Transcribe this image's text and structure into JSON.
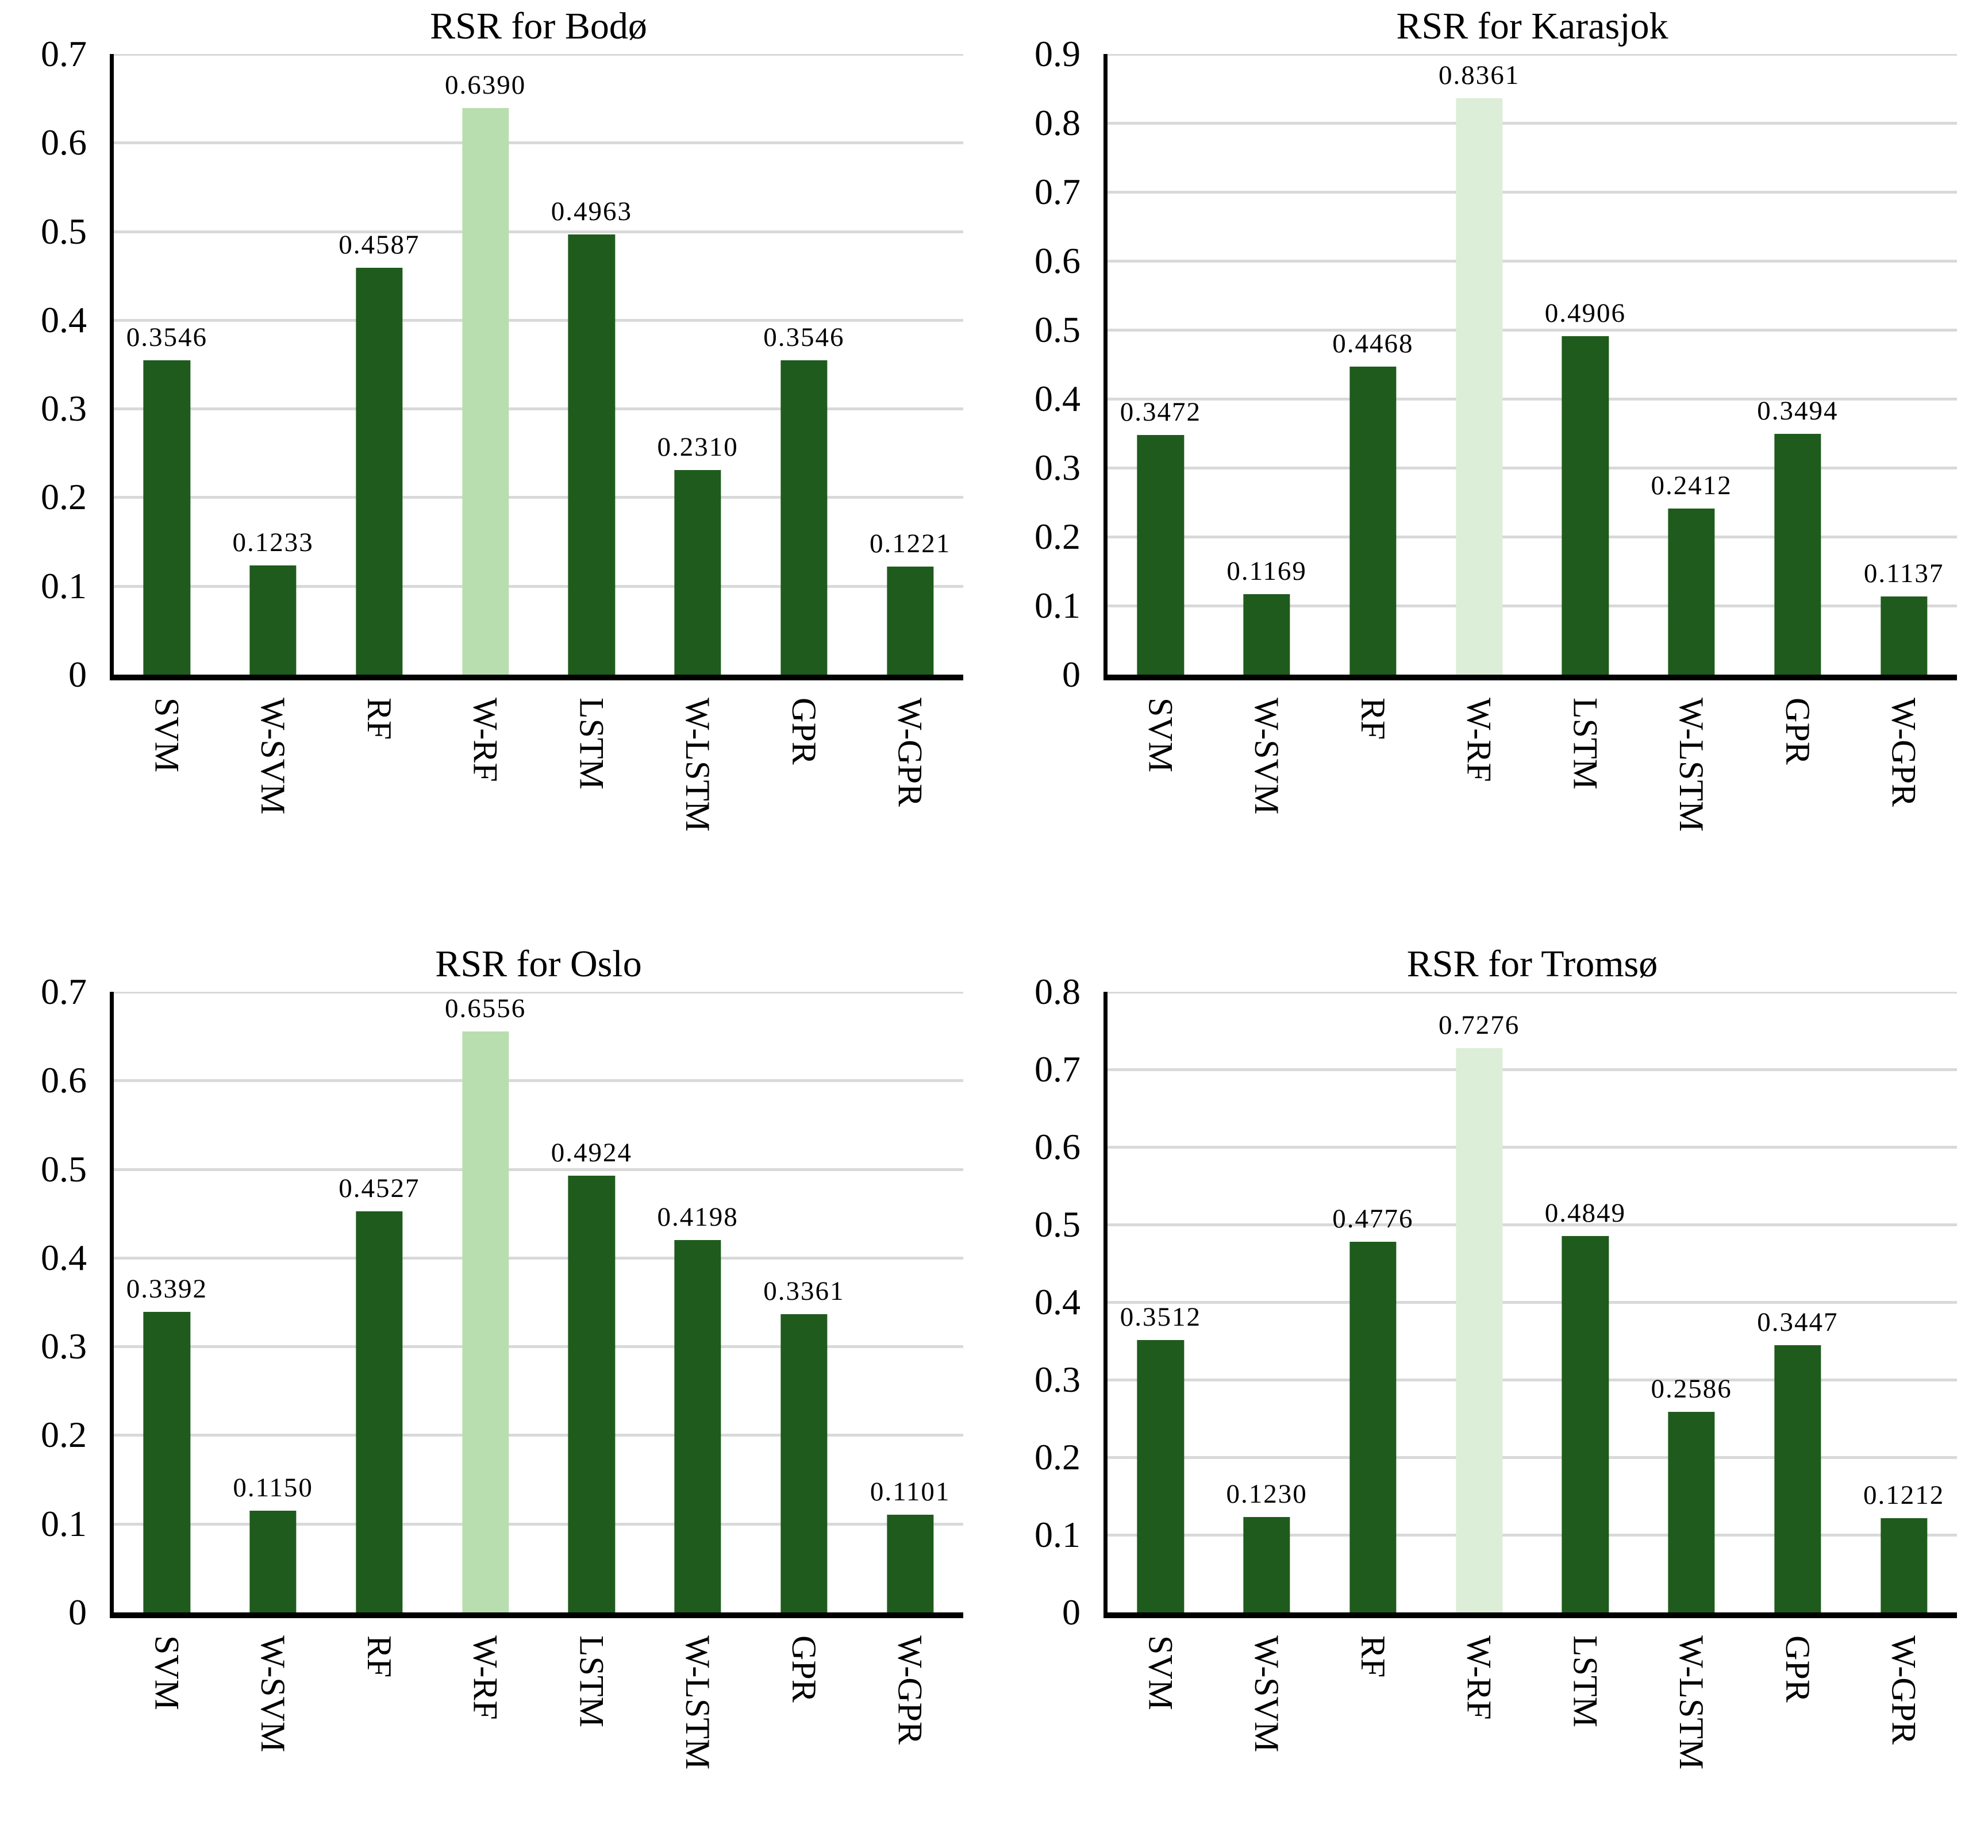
{
  "figure": {
    "background": "#ffffff"
  },
  "colors": {
    "bar_dark_green": "#1f5b1d",
    "highlight_light_green": "#b8deb0",
    "highlight_pale_green": "#dceed8",
    "gridline_gray": "#d9d9d9",
    "axis_black": "#000000",
    "text_black": "#000000"
  },
  "chart_data": [
    {
      "type": "bar",
      "title": "RSR for Bodø",
      "categories": [
        "SVM",
        "W-SVM",
        "RF",
        "W-RF",
        "LSTM",
        "W-LSTM",
        "GPR",
        "W-GPR"
      ],
      "values": [
        0.3546,
        0.1233,
        0.4587,
        0.639,
        0.4963,
        0.231,
        0.3546,
        0.1221
      ],
      "value_labels": [
        "0.3546",
        "0.1233",
        "0.4587",
        "0.6390",
        "0.4963",
        "0.2310",
        "0.3546",
        "0.1221"
      ],
      "highlight_index": 3,
      "bar_color": "#1f5b1d",
      "highlight_color": "#b8deb0",
      "ylim": [
        0,
        0.7
      ],
      "ytick_interval": 0.1,
      "ytick_labels": [
        "0",
        "0.1",
        "0.2",
        "0.3",
        "0.4",
        "0.5",
        "0.6",
        "0.7"
      ],
      "grid": true,
      "legend": "none",
      "xlabel": "",
      "ylabel": ""
    },
    {
      "type": "bar",
      "title": "RSR for Karasjok",
      "categories": [
        "SVM",
        "W-SVM",
        "RF",
        "W-RF",
        "LSTM",
        "W-LSTM",
        "GPR",
        "W-GPR"
      ],
      "values": [
        0.3472,
        0.1169,
        0.4468,
        0.8361,
        0.4906,
        0.2412,
        0.3494,
        0.1137
      ],
      "value_labels": [
        "0.3472",
        "0.1169",
        "0.4468",
        "0.8361",
        "0.4906",
        "0.2412",
        "0.3494",
        "0.1137"
      ],
      "highlight_index": 3,
      "bar_color": "#1f5b1d",
      "highlight_color": "#dceed8",
      "ylim": [
        0,
        0.9
      ],
      "ytick_interval": 0.1,
      "ytick_labels": [
        "0",
        "0.1",
        "0.2",
        "0.3",
        "0.4",
        "0.5",
        "0.6",
        "0.7",
        "0.8",
        "0.9"
      ],
      "grid": true,
      "legend": "none",
      "xlabel": "",
      "ylabel": ""
    },
    {
      "type": "bar",
      "title": "RSR for Oslo",
      "categories": [
        "SVM",
        "W-SVM",
        "RF",
        "W-RF",
        "LSTM",
        "W-LSTM",
        "GPR",
        "W-GPR"
      ],
      "values": [
        0.3392,
        0.115,
        0.4527,
        0.6556,
        0.4924,
        0.4198,
        0.3361,
        0.1101
      ],
      "value_labels": [
        "0.3392",
        "0.1150",
        "0.4527",
        "0.6556",
        "0.4924",
        "0.4198",
        "0.3361",
        "0.1101"
      ],
      "highlight_index": 3,
      "bar_color": "#1f5b1d",
      "highlight_color": "#b8deb0",
      "ylim": [
        0,
        0.7
      ],
      "ytick_interval": 0.1,
      "ytick_labels": [
        "0",
        "0.1",
        "0.2",
        "0.3",
        "0.4",
        "0.5",
        "0.6",
        "0.7"
      ],
      "grid": true,
      "legend": "none",
      "xlabel": "",
      "ylabel": ""
    },
    {
      "type": "bar",
      "title": "RSR for Tromsø",
      "categories": [
        "SVM",
        "W-SVM",
        "RF",
        "W-RF",
        "LSTM",
        "W-LSTM",
        "GPR",
        "W-GPR"
      ],
      "values": [
        0.3512,
        0.123,
        0.4776,
        0.7276,
        0.4849,
        0.2586,
        0.3447,
        0.1212
      ],
      "value_labels": [
        "0.3512",
        "0.1230",
        "0.4776",
        "0.7276",
        "0.4849",
        "0.2586",
        "0.3447",
        "0.1212"
      ],
      "highlight_index": 3,
      "bar_color": "#1f5b1d",
      "highlight_color": "#dceed8",
      "ylim": [
        0,
        0.8
      ],
      "ytick_interval": 0.1,
      "ytick_labels": [
        "0",
        "0.1",
        "0.2",
        "0.3",
        "0.4",
        "0.5",
        "0.6",
        "0.7",
        "0.8"
      ],
      "grid": true,
      "legend": "none",
      "xlabel": "",
      "ylabel": ""
    }
  ]
}
